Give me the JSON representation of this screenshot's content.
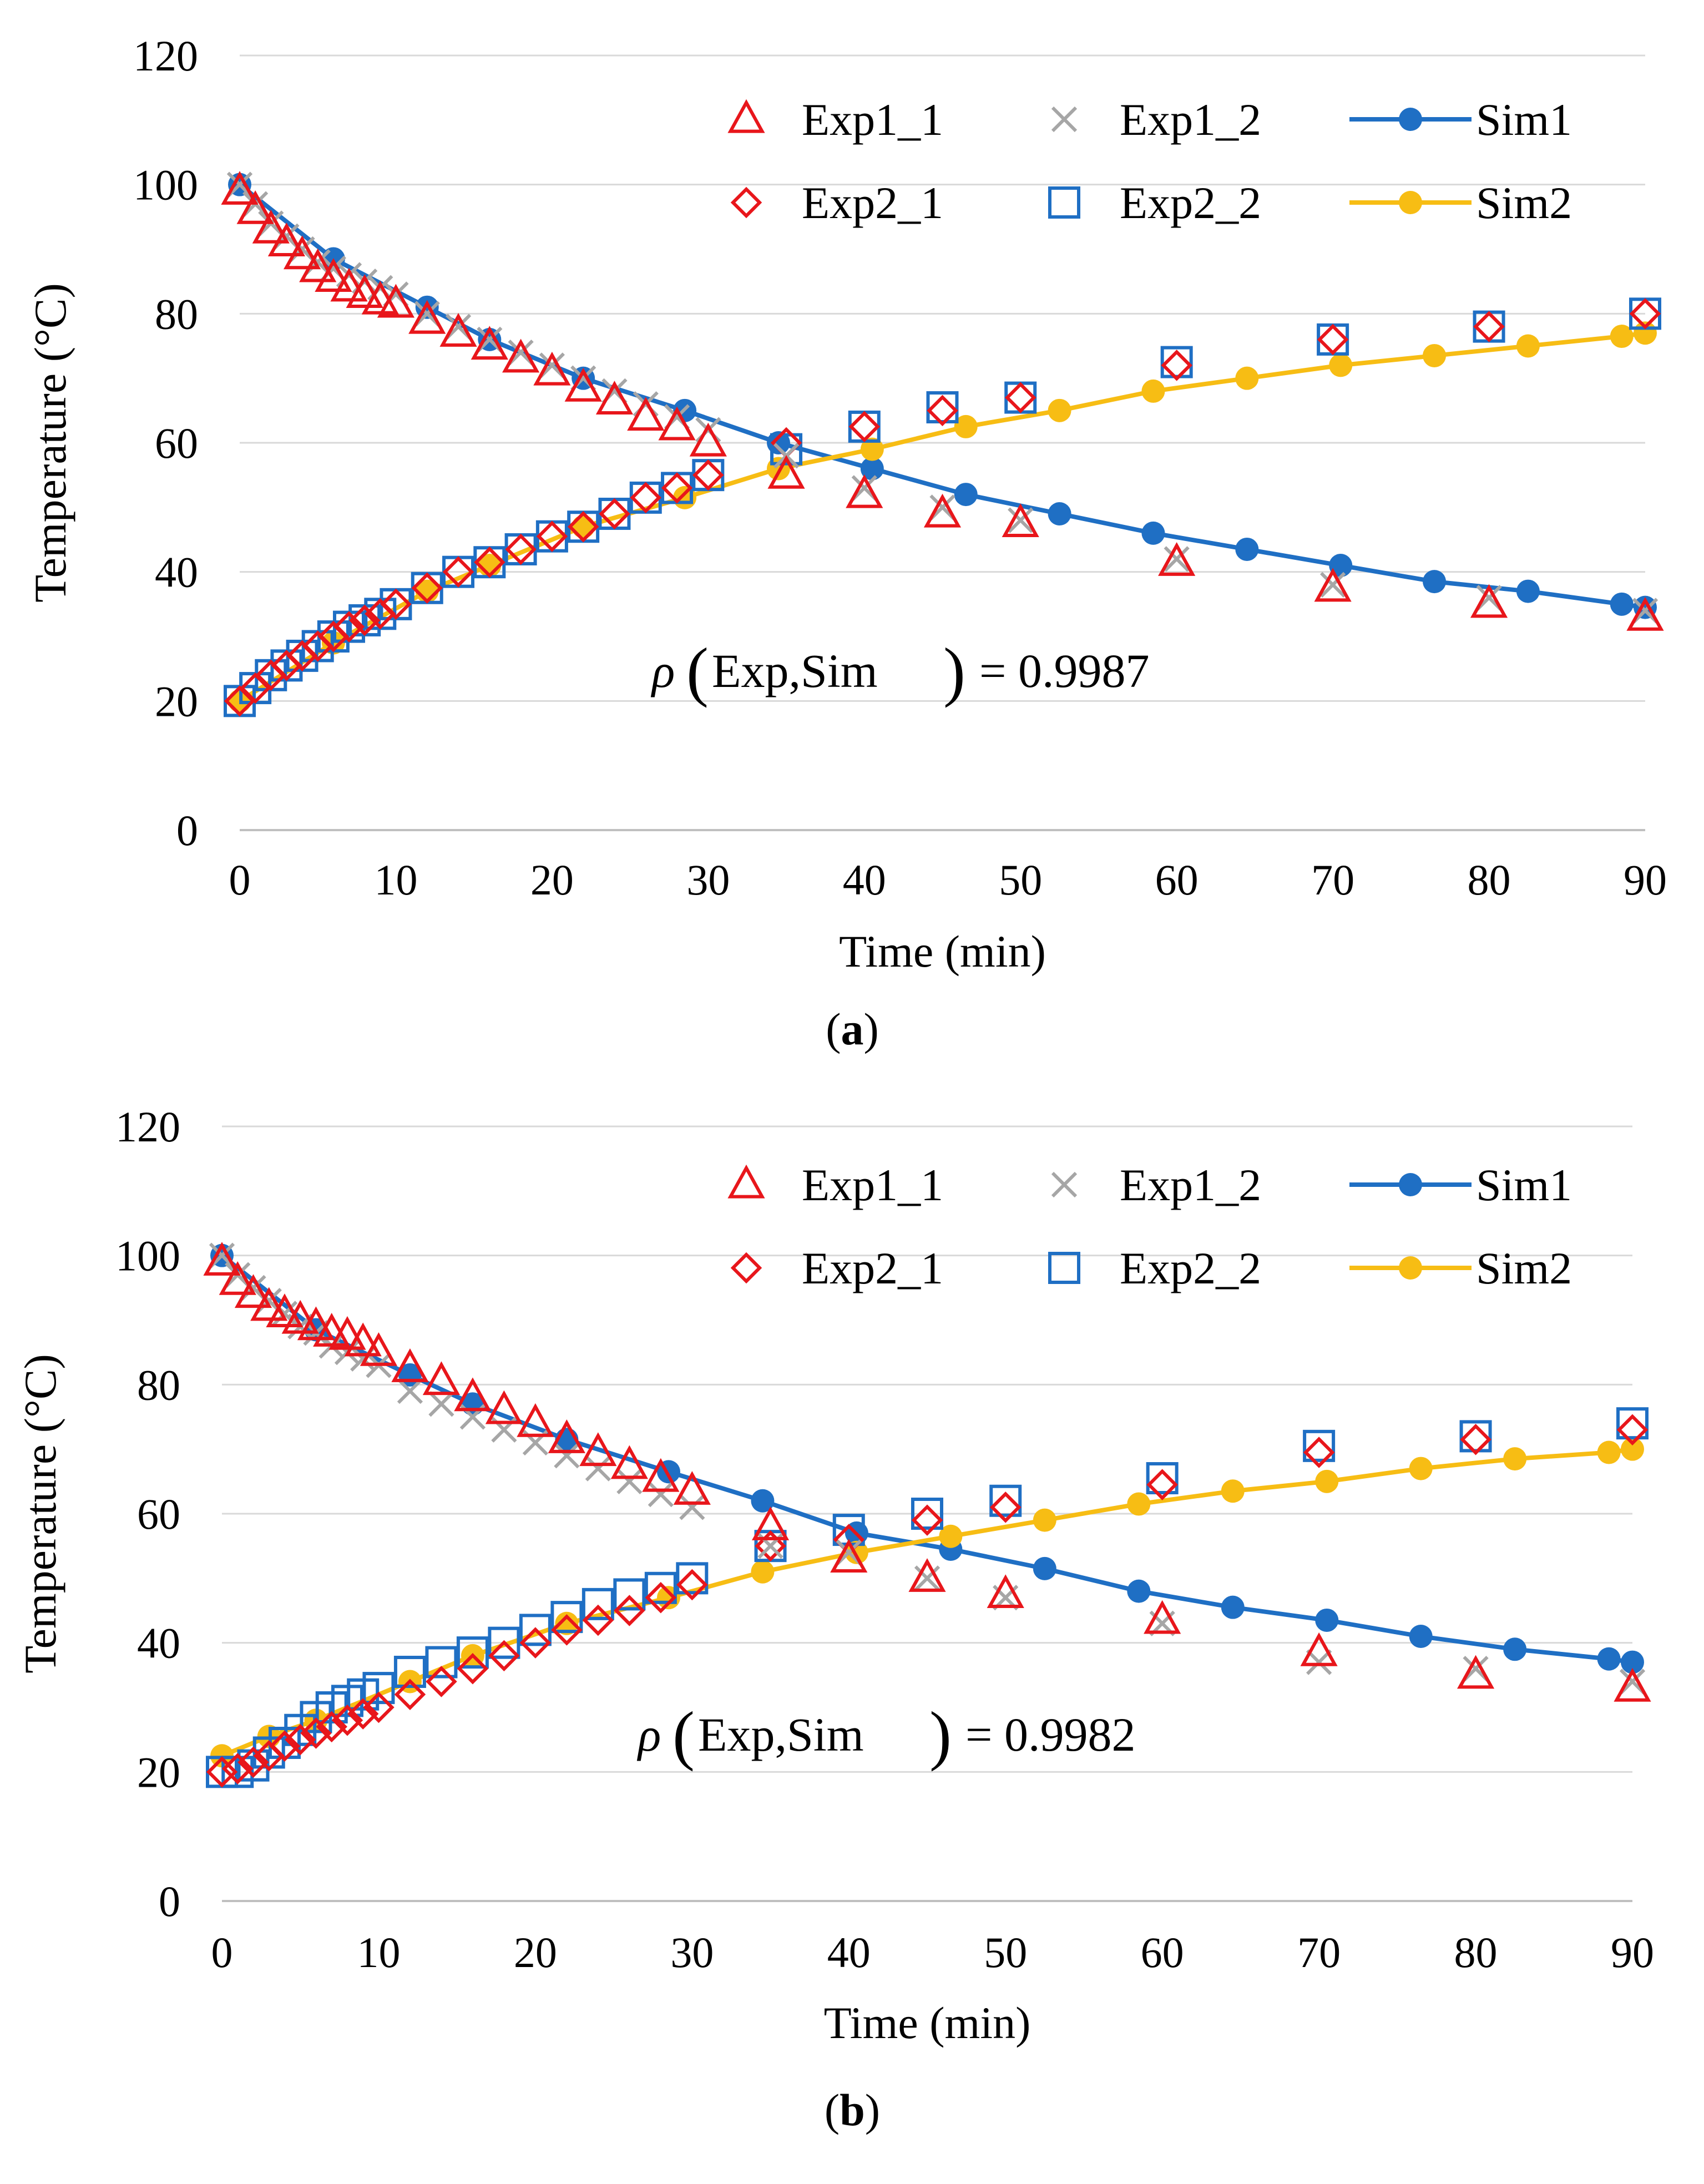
{
  "figure": {
    "colors": {
      "exp1_1": "#e8161b",
      "exp1_2": "#a6a6a6",
      "exp2_1": "#e8161b",
      "exp2_2": "#1f6fc4",
      "sim1": "#1f6fc4",
      "sim2": "#f7bd14",
      "grid": "#d9d9d9",
      "axis": "#bfbfbf"
    },
    "panels": [
      {
        "label_letter": "a",
        "correlation": {
          "rho": "ρ",
          "args": "Exp,Sim",
          "value": "= 0.9987"
        }
      },
      {
        "label_letter": "b",
        "correlation": {
          "rho": "ρ",
          "args": "Exp,Sim",
          "value": "= 0.9982"
        }
      }
    ]
  },
  "chart_data": [
    {
      "type": "line",
      "title": "",
      "xlabel": "Time (min)",
      "ylabel": "Temperature (°C)",
      "xlim": [
        0,
        90
      ],
      "ylim": [
        0,
        120
      ],
      "xticks": [
        0,
        10,
        20,
        30,
        40,
        50,
        60,
        70,
        80,
        90
      ],
      "yticks": [
        0,
        20,
        40,
        60,
        80,
        100,
        120
      ],
      "grid": "horizontal",
      "legend": "top-right",
      "series": [
        {
          "name": "Exp1_1",
          "marker": "triangle",
          "line": false,
          "color_key": "exp1_1",
          "x": [
            0,
            1,
            2,
            3,
            4,
            5,
            6,
            7,
            8,
            9,
            10,
            12,
            14,
            16,
            18,
            20,
            22,
            24,
            26,
            28,
            30,
            35,
            40,
            45,
            50,
            60,
            70,
            80,
            90
          ],
          "y": [
            99,
            96,
            93,
            91,
            89,
            87,
            85.5,
            84,
            83,
            82,
            81.5,
            79,
            77,
            75,
            73,
            71,
            68.5,
            66.5,
            64,
            62.5,
            60,
            55,
            52,
            49,
            47.5,
            41.5,
            37.5,
            35,
            33
          ]
        },
        {
          "name": "Exp1_2",
          "marker": "x",
          "line": false,
          "color_key": "exp1_2",
          "x": [
            0,
            1,
            2,
            3,
            4,
            5,
            6,
            7,
            8,
            9,
            10,
            12,
            14,
            16,
            18,
            20,
            22,
            24,
            26,
            28,
            30,
            35,
            40,
            45,
            50,
            60,
            70,
            80,
            90
          ],
          "y": [
            100,
            97,
            94,
            92,
            90,
            88,
            87,
            86,
            85,
            84,
            83,
            80,
            78,
            76,
            74,
            72,
            70,
            68,
            66,
            64,
            62,
            58,
            53,
            50,
            48,
            42,
            38,
            36,
            34
          ]
        },
        {
          "name": "Sim1",
          "marker": "circle",
          "line": true,
          "color_key": "sim1",
          "x": [
            0,
            6,
            12,
            16,
            22,
            28.5,
            34.5,
            40.5,
            46.5,
            52.5,
            58.5,
            64.5,
            70.5,
            76.5,
            82.5,
            88.5,
            90
          ],
          "y": [
            100,
            88.5,
            81,
            76,
            70,
            65,
            60,
            56,
            52,
            49,
            46,
            43.5,
            41,
            38.5,
            37,
            35,
            34.5
          ]
        },
        {
          "name": "Exp2_1",
          "marker": "diamond",
          "line": false,
          "color_key": "exp2_1",
          "x": [
            0,
            1,
            2,
            3,
            4,
            5,
            6,
            7,
            8,
            9,
            10,
            12,
            14,
            16,
            18,
            20,
            22,
            24,
            26,
            28,
            30,
            35,
            40,
            45,
            50,
            60,
            70,
            80,
            90
          ],
          "y": [
            20,
            22,
            24,
            25.5,
            27,
            28.5,
            30,
            31.5,
            32.5,
            33.5,
            35,
            37.5,
            40,
            41.5,
            43.5,
            45.5,
            47,
            49,
            51.5,
            53,
            55,
            60,
            62.5,
            65,
            67,
            72,
            76,
            78,
            80
          ]
        },
        {
          "name": "Exp2_2",
          "marker": "square",
          "line": false,
          "color_key": "exp2_2",
          "x": [
            0,
            1,
            2,
            3,
            4,
            5,
            6,
            7,
            8,
            9,
            10,
            12,
            14,
            16,
            18,
            20,
            22,
            24,
            26,
            28,
            30,
            35,
            40,
            45,
            50,
            60,
            70,
            80,
            90
          ],
          "y": [
            20,
            22,
            24,
            25.5,
            27,
            28.5,
            30,
            31.5,
            32.5,
            33.5,
            35,
            37.5,
            40,
            41.5,
            43.5,
            45.5,
            47,
            49,
            51.5,
            53,
            55,
            59,
            62.5,
            65.5,
            67,
            72.5,
            76,
            78,
            80
          ]
        },
        {
          "name": "Sim2",
          "marker": "circle",
          "line": true,
          "color_key": "sim2",
          "x": [
            0,
            6,
            12,
            16,
            22,
            28.5,
            34.5,
            40.5,
            46.5,
            52.5,
            58.5,
            64.5,
            70.5,
            76.5,
            82.5,
            88.5,
            90
          ],
          "y": [
            20,
            29,
            37,
            41,
            47,
            51.5,
            56,
            59,
            62.5,
            65,
            68,
            70,
            72,
            73.5,
            75,
            76.5,
            77
          ]
        }
      ]
    },
    {
      "type": "line",
      "title": "",
      "xlabel": "Time (min)",
      "ylabel": "Temperature (°C)",
      "xlim": [
        0,
        90
      ],
      "ylim": [
        0,
        120
      ],
      "xticks": [
        0,
        10,
        20,
        30,
        40,
        50,
        60,
        70,
        80,
        90
      ],
      "yticks": [
        0,
        20,
        40,
        60,
        80,
        100,
        120
      ],
      "grid": "horizontal",
      "legend": "top-right",
      "series": [
        {
          "name": "Exp1_1",
          "marker": "triangle",
          "line": false,
          "color_key": "exp1_1",
          "x": [
            0,
            1,
            2,
            3,
            4,
            5,
            6,
            7,
            8,
            9,
            10,
            12,
            14,
            16,
            18,
            20,
            22,
            24,
            26,
            28,
            30,
            35,
            40,
            45,
            50,
            60,
            70,
            80,
            90
          ],
          "y": [
            99,
            96,
            94,
            92,
            91,
            90,
            89,
            88,
            87.5,
            86.5,
            85,
            82.5,
            80.5,
            78,
            76,
            74,
            71.5,
            69.5,
            67.5,
            65.5,
            63.5,
            58,
            53,
            50,
            47.5,
            43.5,
            38.5,
            35,
            33
          ]
        },
        {
          "name": "Exp1_2",
          "marker": "x",
          "line": false,
          "color_key": "exp1_2",
          "x": [
            0,
            1,
            2,
            3,
            4,
            5,
            6,
            7,
            8,
            9,
            10,
            12,
            14,
            16,
            18,
            20,
            22,
            24,
            26,
            28,
            30,
            35,
            40,
            45,
            50,
            60,
            70,
            80,
            90
          ],
          "y": [
            100,
            97,
            95,
            93,
            91,
            89,
            88,
            86,
            85,
            84,
            83,
            79,
            77,
            75,
            73,
            71,
            69,
            67,
            65,
            63,
            61,
            55,
            54,
            50,
            47,
            43,
            37,
            36,
            34
          ]
        },
        {
          "name": "Sim1",
          "marker": "circle",
          "line": true,
          "color_key": "sim1",
          "x": [
            0,
            6,
            12,
            16,
            22,
            28.5,
            34.5,
            40.5,
            46.5,
            52.5,
            58.5,
            64.5,
            70.5,
            76.5,
            82.5,
            88.5,
            90
          ],
          "y": [
            100,
            88.5,
            81.5,
            77,
            71.5,
            66.5,
            62,
            57,
            54.5,
            51.5,
            48,
            45.5,
            43.5,
            41,
            39,
            37.5,
            37
          ]
        },
        {
          "name": "Exp2_1",
          "marker": "diamond",
          "line": false,
          "color_key": "exp2_1",
          "x": [
            0,
            1,
            2,
            3,
            4,
            5,
            6,
            7,
            8,
            9,
            10,
            12,
            14,
            16,
            18,
            20,
            22,
            24,
            26,
            28,
            30,
            35,
            40,
            45,
            50,
            60,
            70,
            80,
            90
          ],
          "y": [
            20,
            20.5,
            21.5,
            22.5,
            24,
            25,
            26,
            27,
            28,
            29,
            30,
            32,
            34,
            36,
            38,
            40,
            42,
            43.5,
            45,
            47,
            49,
            55,
            56,
            59,
            61,
            64.5,
            69.5,
            71.5,
            73
          ]
        },
        {
          "name": "Exp2_2",
          "marker": "square",
          "line": false,
          "color_key": "exp2_2",
          "x": [
            0,
            1,
            2,
            3,
            4,
            5,
            6,
            7,
            8,
            9,
            10,
            12,
            14,
            16,
            18,
            20,
            22,
            24,
            26,
            28,
            30,
            35,
            40,
            45,
            50,
            60,
            70,
            80,
            90
          ],
          "y": [
            20,
            20,
            21,
            23,
            24.5,
            26.5,
            28.5,
            30,
            31,
            32,
            33,
            35.5,
            37,
            38.5,
            40,
            42,
            44,
            46,
            47.5,
            48.5,
            50,
            55,
            57.5,
            60,
            62,
            65.5,
            70.5,
            72,
            74
          ]
        },
        {
          "name": "Sim2",
          "marker": "circle",
          "line": true,
          "color_key": "sim2",
          "x": [
            0,
            3,
            6,
            12,
            16,
            22,
            28.5,
            34.5,
            40.5,
            46.5,
            52.5,
            58.5,
            64.5,
            70.5,
            76.5,
            82.5,
            88.5,
            90
          ],
          "y": [
            22.5,
            25.5,
            28,
            34,
            38,
            43,
            47,
            51,
            54,
            56.5,
            59,
            61.5,
            63.5,
            65,
            67,
            68.5,
            69.5,
            70
          ]
        }
      ]
    }
  ]
}
